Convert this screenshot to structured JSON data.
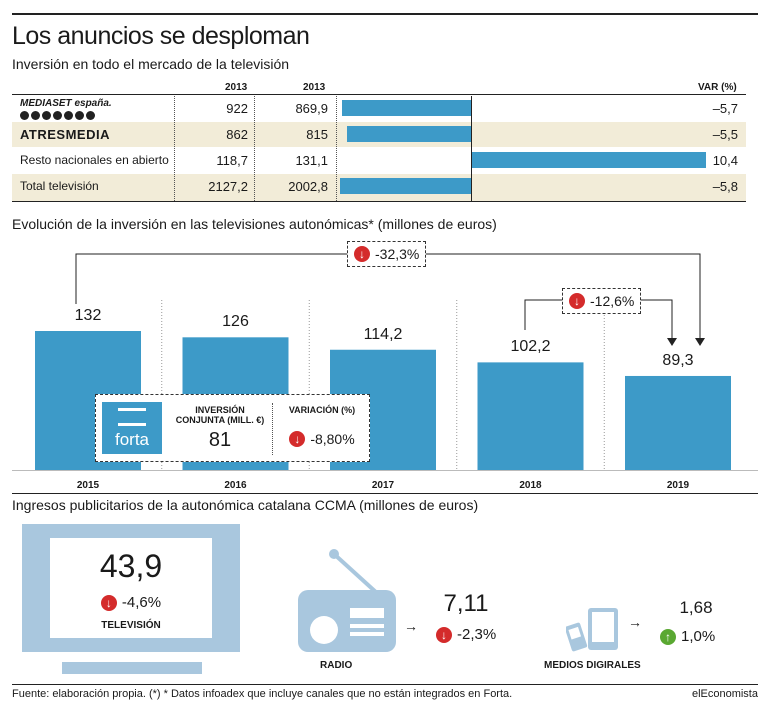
{
  "title": "Los anuncios se desploman",
  "subtitle": "Inversión en todo el mercado de la televisión",
  "table": {
    "col1_header": "2013",
    "col2_header": "2013",
    "var_header": "VAR (%)",
    "rows": [
      {
        "label": "MEDIASET españa.",
        "a": "922",
        "b": "869,9",
        "var": "–5,7",
        "var_value": -5.7
      },
      {
        "label": "ATRESMEDIA",
        "a": "862",
        "b": "815",
        "var": "–5,5",
        "var_value": -5.5
      },
      {
        "label": "Resto nacionales en abierto",
        "a": "118,7",
        "b": "131,1",
        "var": "10,4",
        "var_value": 10.4
      },
      {
        "label": "Total televisión",
        "a": "2127,2",
        "b": "2002,8",
        "var": "–5,8",
        "var_value": -5.8
      }
    ]
  },
  "autonomicas": {
    "title": "Evolución de la inversión en las televisiones autonómicas* (millones de euros)",
    "total_change": "-32,3%",
    "recent_change": "-12,6%",
    "forta": {
      "logo_text": "forta",
      "col1_label": "INVERSIÓN CONJUNTA (MILL. €)",
      "col1_value": "81",
      "col2_label": "VARIACIÓN (%)",
      "col2_value": "-8,80%"
    }
  },
  "chart_data": {
    "type": "bar",
    "categories": [
      "2015",
      "2016",
      "2017",
      "2018",
      "2019"
    ],
    "values": [
      132,
      126,
      114.2,
      102.2,
      89.3
    ],
    "labels": [
      "132",
      "126",
      "114,2",
      "102,2",
      "89,3"
    ],
    "title": "Evolución de la inversión en las televisiones autonómicas* (millones de euros)",
    "ylim": [
      0,
      132
    ],
    "grid": false
  },
  "ccma": {
    "title": "Ingresos publicitarios de la autonómica catalana CCMA (millones de euros)",
    "tv": {
      "value": "43,9",
      "change": "-4,6%",
      "label": "TELEVISIÓN"
    },
    "radio": {
      "value": "7,11",
      "change": "-2,3%",
      "label": "RADIO"
    },
    "digital": {
      "value": "1,68",
      "change": "1,0%",
      "label": "MEDIOS DIGIRALES"
    }
  },
  "footer": "Fuente: elaboración propia. (*) * Datos infoadex que incluye canales que no están integrados en Forta.",
  "brand": "elEconomista",
  "colors": {
    "bar": "#3d9ac8",
    "shade": "#f2ecd8",
    "down": "#d42b2b",
    "up": "#5aa832",
    "tv_frame": "#a9c7de"
  }
}
